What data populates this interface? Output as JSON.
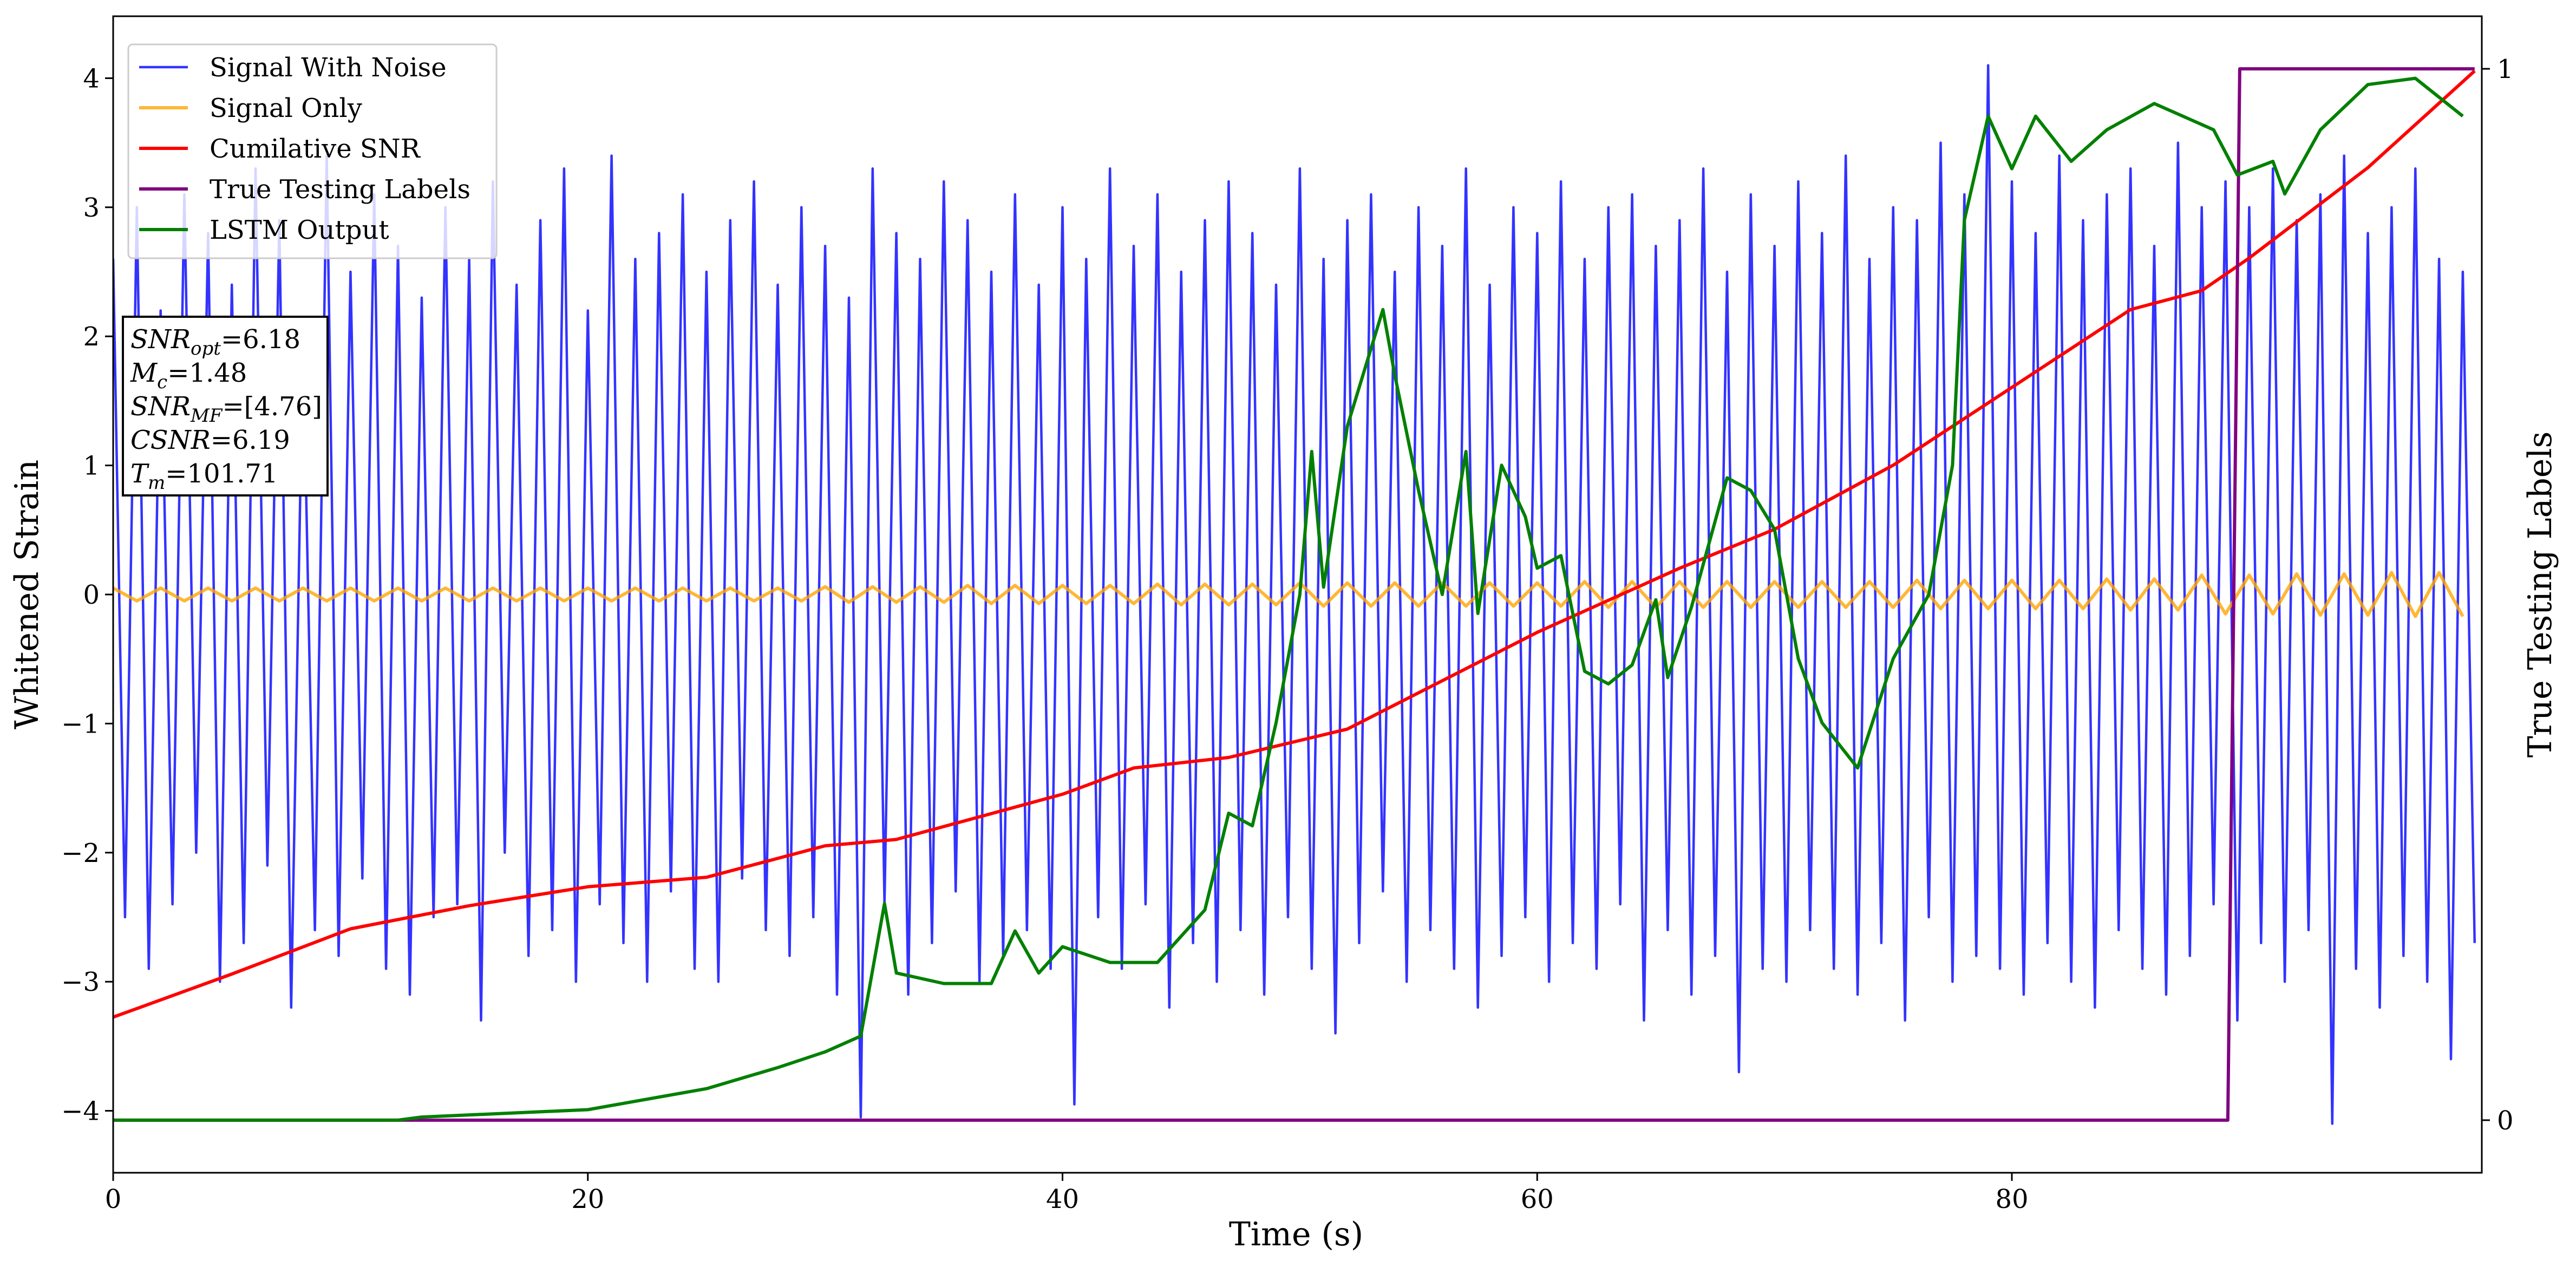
{
  "chart_data": {
    "type": "line",
    "xlabel": "Time (s)",
    "ylabel": "Whitened Strain",
    "y2label": "True Testing Labels",
    "xlim": [
      0,
      99.8
    ],
    "ylim": [
      -4.48,
      4.48
    ],
    "y2lim": [
      -0.05,
      1.05
    ],
    "xticks": [
      0,
      20,
      40,
      60,
      80
    ],
    "yticks": [
      {
        "value": -4,
        "label": "−4"
      },
      {
        "value": -3,
        "label": "−3"
      },
      {
        "value": -2,
        "label": "−2"
      },
      {
        "value": -1,
        "label": "−1"
      },
      0,
      1,
      2,
      3,
      4
    ],
    "y2ticks": [
      0,
      1
    ],
    "legend": "upper left",
    "alpha": 0.8,
    "annotation_lines": [
      {
        "symbol": "SNR",
        "sub": "opt",
        "text": "=6.18"
      },
      {
        "symbol": "M",
        "sub": "c",
        "text": "=1.48"
      },
      {
        "symbol": "SNR",
        "sub": "MF",
        "text": "=[4.76]"
      },
      {
        "symbol": "CSNR",
        "text": "=6.19"
      },
      {
        "symbol": "T",
        "sub": "m",
        "text": "=101.71"
      }
    ],
    "series": [
      {
        "name": "Signal With Noise",
        "color": "#0000ff",
        "width": 4.5,
        "translucent": true,
        "x": [
          0,
          0.5,
          1,
          1.5,
          2,
          2.5,
          3,
          3.5,
          4,
          4.5,
          5,
          5.5,
          6,
          6.5,
          7,
          7.5,
          8,
          8.5,
          9,
          9.5,
          10,
          10.5,
          11,
          11.5,
          12,
          12.5,
          13,
          13.5,
          14,
          14.5,
          15,
          15.5,
          16,
          16.5,
          17,
          17.5,
          18,
          18.5,
          19,
          19.5,
          20,
          20.5,
          21,
          21.5,
          22,
          22.5,
          23,
          23.5,
          24,
          24.5,
          25,
          25.5,
          26,
          26.5,
          27,
          27.5,
          28,
          28.5,
          29,
          29.5,
          30,
          30.5,
          31,
          31.5,
          32,
          32.5,
          33,
          33.5,
          34,
          34.5,
          35,
          35.5,
          36,
          36.5,
          37,
          37.5,
          38,
          38.5,
          39,
          39.5,
          40,
          40.5,
          41,
          41.5,
          42,
          42.5,
          43,
          43.5,
          44,
          44.5,
          45,
          45.5,
          46,
          46.5,
          47,
          47.5,
          48,
          48.5,
          49,
          49.5,
          50,
          50.5,
          51,
          51.5,
          52,
          52.5,
          53,
          53.5,
          54,
          54.5,
          55,
          55.5,
          56,
          56.5,
          57,
          57.5,
          58,
          58.5,
          59,
          59.5,
          60,
          60.5,
          61,
          61.5,
          62,
          62.5,
          63,
          63.5,
          64,
          64.5,
          65,
          65.5,
          66,
          66.5,
          67,
          67.5,
          68,
          68.5,
          69,
          69.5,
          70,
          70.5,
          71,
          71.5,
          72,
          72.5,
          73,
          73.5,
          74,
          74.5,
          75,
          75.5,
          76,
          76.5,
          77,
          77.5,
          78,
          78.5,
          79,
          79.5,
          80,
          80.5,
          81,
          81.5,
          82,
          82.5,
          83,
          83.5,
          84,
          84.5,
          85,
          85.5,
          86,
          86.5,
          87,
          87.5,
          88,
          88.5,
          89,
          89.5,
          90,
          90.5,
          91,
          91.5,
          92,
          92.5,
          93,
          93.5,
          94,
          94.5,
          95,
          95.5,
          96,
          96.5,
          97,
          97.5,
          98,
          98.5,
          99,
          99.5
        ],
        "values": [
          2.6,
          -2.5,
          3.0,
          -2.9,
          2.2,
          -2.4,
          3.1,
          -2.0,
          2.8,
          -3.0,
          2.4,
          -2.7,
          3.3,
          -2.1,
          2.9,
          -3.2,
          2.0,
          -2.6,
          3.4,
          -2.8,
          2.5,
          -2.2,
          3.1,
          -2.9,
          2.7,
          -3.1,
          2.3,
          -2.5,
          3.0,
          -2.4,
          2.6,
          -3.3,
          3.2,
          -2.0,
          2.4,
          -2.8,
          2.9,
          -2.6,
          3.3,
          -3.0,
          2.2,
          -2.4,
          3.4,
          -2.7,
          2.6,
          -3.0,
          2.8,
          -2.3,
          3.1,
          -2.9,
          2.5,
          -3.0,
          2.9,
          -2.2,
          3.2,
          -2.6,
          2.4,
          -2.8,
          3.0,
          -2.5,
          2.7,
          -3.1,
          2.3,
          -4.05,
          3.3,
          -2.4,
          2.8,
          -3.1,
          2.6,
          -2.7,
          3.2,
          -2.3,
          2.9,
          -3.0,
          2.5,
          -2.8,
          3.1,
          -2.6,
          2.4,
          -2.9,
          3.0,
          -3.95,
          2.6,
          -2.5,
          3.3,
          -2.9,
          2.7,
          -2.4,
          3.1,
          -3.2,
          2.5,
          -2.7,
          2.9,
          -3.0,
          3.2,
          -2.6,
          2.8,
          -3.1,
          2.4,
          -2.5,
          3.3,
          -2.9,
          2.6,
          -3.4,
          2.9,
          -2.7,
          3.1,
          -2.3,
          2.5,
          -3.0,
          3.0,
          -2.6,
          2.7,
          -2.9,
          3.3,
          -3.2,
          2.4,
          -2.8,
          3.0,
          -2.5,
          2.8,
          -3.0,
          3.2,
          -2.7,
          2.6,
          -2.9,
          3.0,
          -2.4,
          3.1,
          -3.3,
          2.7,
          -2.6,
          2.9,
          -3.1,
          3.3,
          -2.8,
          2.5,
          -3.7,
          3.1,
          -2.9,
          2.7,
          -3.0,
          3.2,
          -2.6,
          2.8,
          -2.9,
          3.4,
          -3.1,
          2.6,
          -2.7,
          3.0,
          -3.3,
          2.9,
          -2.5,
          3.5,
          -3.0,
          3.1,
          -2.8,
          4.1,
          -2.9,
          3.2,
          -3.1,
          2.8,
          -2.7,
          3.4,
          -3.0,
          2.9,
          -3.2,
          3.1,
          -2.6,
          3.3,
          -2.9,
          2.7,
          -3.1,
          3.5,
          -2.8,
          3.0,
          -2.4,
          3.2,
          -3.3,
          3.0,
          -2.7,
          3.3,
          -3.0,
          2.9,
          -2.6,
          3.1,
          -4.1,
          3.4,
          -2.9,
          2.8,
          -3.2,
          3.0,
          -2.8,
          3.3,
          -3.0,
          2.6,
          -3.6,
          2.5,
          -2.7
        ]
      },
      {
        "name": "Signal Only",
        "color": "#ffa500",
        "width": 6,
        "translucent": true,
        "x": [
          0,
          1,
          2,
          3,
          4,
          5,
          6,
          7,
          8,
          9,
          10,
          11,
          12,
          13,
          14,
          15,
          16,
          17,
          18,
          19,
          20,
          21,
          22,
          23,
          24,
          25,
          26,
          27,
          28,
          29,
          30,
          31,
          32,
          33,
          34,
          35,
          36,
          37,
          38,
          39,
          40,
          41,
          42,
          43,
          44,
          45,
          46,
          47,
          48,
          49,
          50,
          51,
          52,
          53,
          54,
          55,
          56,
          57,
          58,
          59,
          60,
          61,
          62,
          63,
          64,
          65,
          66,
          67,
          68,
          69,
          70,
          71,
          72,
          73,
          74,
          75,
          76,
          77,
          78,
          79,
          80,
          81,
          82,
          83,
          84,
          85,
          86,
          87,
          88,
          89,
          90,
          91,
          92,
          93,
          94,
          95,
          96,
          97,
          98,
          99
        ],
        "values": [
          0.05,
          -0.05,
          0.05,
          -0.05,
          0.05,
          -0.05,
          0.05,
          -0.05,
          0.05,
          -0.05,
          0.05,
          -0.05,
          0.05,
          -0.05,
          0.05,
          -0.05,
          0.05,
          -0.05,
          0.05,
          -0.05,
          0.05,
          -0.05,
          0.05,
          -0.05,
          0.05,
          -0.05,
          0.05,
          -0.05,
          0.05,
          -0.05,
          0.06,
          -0.06,
          0.06,
          -0.06,
          0.06,
          -0.06,
          0.07,
          -0.07,
          0.07,
          -0.07,
          0.07,
          -0.07,
          0.07,
          -0.07,
          0.08,
          -0.08,
          0.08,
          -0.08,
          0.08,
          -0.08,
          0.09,
          -0.09,
          0.09,
          -0.09,
          0.09,
          -0.09,
          0.09,
          -0.09,
          0.09,
          -0.09,
          0.09,
          -0.09,
          0.1,
          -0.1,
          0.1,
          -0.1,
          0.1,
          -0.1,
          0.1,
          -0.1,
          0.1,
          -0.1,
          0.1,
          -0.1,
          0.1,
          -0.1,
          0.11,
          -0.11,
          0.11,
          -0.11,
          0.11,
          -0.11,
          0.11,
          -0.11,
          0.12,
          -0.12,
          0.12,
          -0.12,
          0.15,
          -0.15,
          0.15,
          -0.15,
          0.16,
          -0.16,
          0.16,
          -0.16,
          0.17,
          -0.17,
          0.17,
          -0.17
        ]
      },
      {
        "name": "Cumilative SNR",
        "color": "#ff0000",
        "width": 6,
        "axis": "y2",
        "x": [
          0,
          5,
          10,
          15,
          20,
          25,
          30,
          33,
          40,
          43,
          47,
          52,
          60,
          66,
          70,
          75,
          80,
          85,
          88,
          90,
          95,
          99.5
        ],
        "values": [
          0.098,
          0.139,
          0.182,
          0.204,
          0.222,
          0.231,
          0.261,
          0.267,
          0.31,
          0.335,
          0.345,
          0.372,
          0.464,
          0.525,
          0.562,
          0.623,
          0.697,
          0.771,
          0.789,
          0.82,
          0.906,
          0.998
        ]
      },
      {
        "name": "True Testing Labels",
        "color": "#800080",
        "width": 6,
        "axis": "y2",
        "x": [
          0,
          89.1,
          89.6,
          99.5
        ],
        "values": [
          0,
          0,
          1,
          1
        ]
      },
      {
        "name": "LSTM Output",
        "color": "#008000",
        "width": 6,
        "axis": "y2",
        "x": [
          0,
          12,
          13,
          20,
          25,
          28,
          30,
          31.5,
          32.5,
          33,
          35,
          37,
          38,
          39,
          40,
          42,
          44,
          46,
          47,
          48,
          49,
          50,
          50.5,
          51,
          52,
          53.5,
          54,
          55,
          56,
          57,
          57.5,
          58.5,
          59.5,
          60,
          61,
          62,
          63,
          64,
          65,
          65.5,
          66.5,
          68,
          69,
          70,
          71,
          72,
          73.5,
          75,
          76.5,
          77.5,
          78,
          79,
          80,
          81,
          82.5,
          84,
          86,
          88.5,
          89.5,
          91,
          91.5,
          93,
          95,
          97,
          99
        ],
        "values": [
          0,
          0,
          0.003,
          0.01,
          0.03,
          0.05,
          0.065,
          0.08,
          0.206,
          0.14,
          0.13,
          0.13,
          0.18,
          0.14,
          0.165,
          0.15,
          0.15,
          0.2,
          0.292,
          0.28,
          0.378,
          0.5,
          0.636,
          0.507,
          0.66,
          0.771,
          0.709,
          0.599,
          0.5,
          0.636,
          0.482,
          0.623,
          0.574,
          0.525,
          0.537,
          0.427,
          0.415,
          0.433,
          0.495,
          0.421,
          0.488,
          0.611,
          0.599,
          0.562,
          0.439,
          0.378,
          0.335,
          0.439,
          0.5,
          0.623,
          0.856,
          0.955,
          0.905,
          0.955,
          0.912,
          0.942,
          0.967,
          0.942,
          0.899,
          0.912,
          0.881,
          0.942,
          0.985,
          0.991,
          0.955
        ]
      }
    ]
  }
}
